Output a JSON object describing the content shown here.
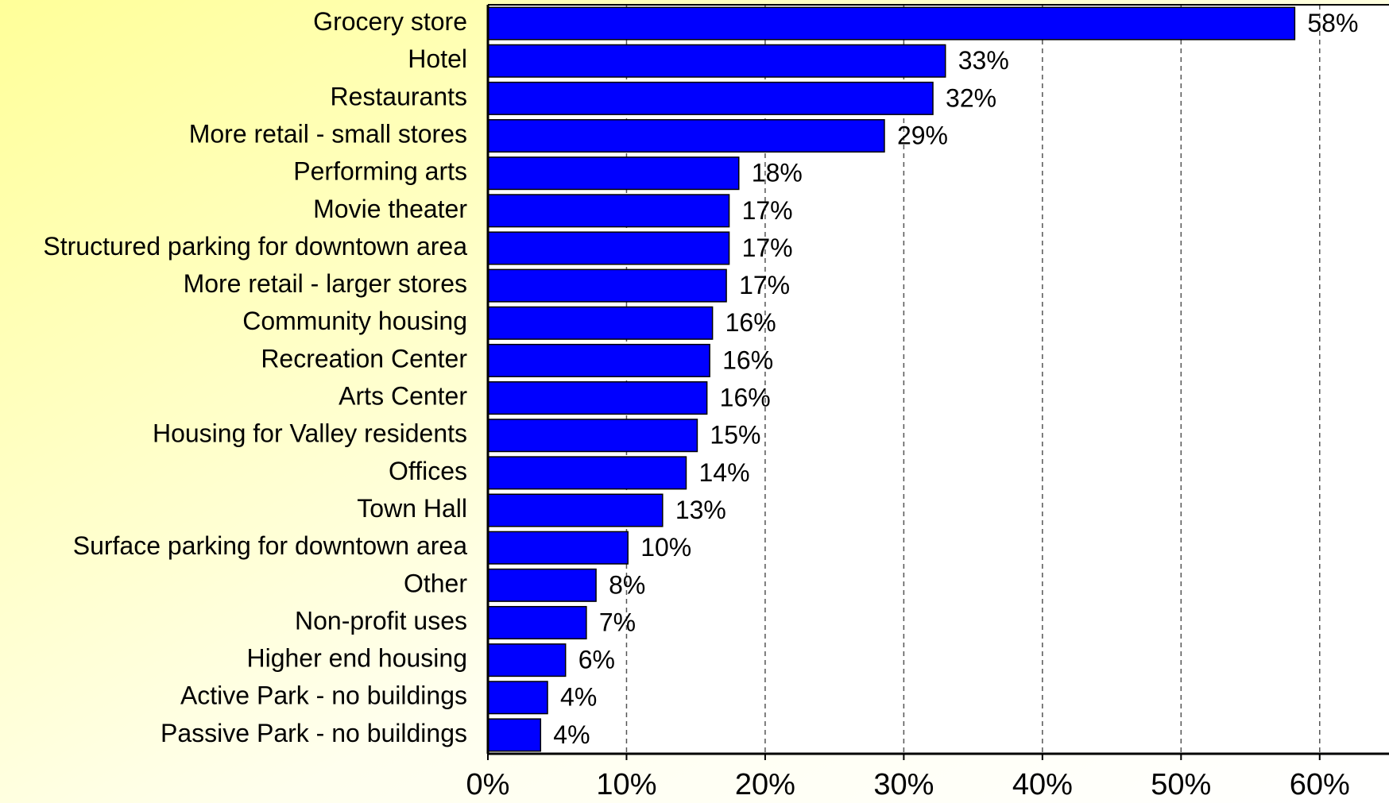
{
  "chart_data": {
    "type": "barh",
    "categories": [
      "Grocery store",
      "Hotel",
      "Restaurants",
      "More retail - small stores",
      "Performing arts",
      "Movie theater",
      "Structured parking for downtown area",
      "More retail - larger stores",
      "Community housing",
      "Recreation Center",
      "Arts Center",
      "Housing for Valley residents",
      "Offices",
      "Town Hall",
      "Surface parking for downtown area",
      "Other",
      "Non-profit uses",
      "Higher end housing",
      "Active Park - no buildings",
      "Passive Park - no buildings"
    ],
    "values": [
      58.2,
      33.0,
      32.1,
      28.6,
      18.1,
      17.4,
      17.4,
      17.2,
      16.2,
      16.0,
      15.8,
      15.1,
      14.3,
      12.6,
      10.1,
      7.8,
      7.1,
      5.6,
      4.3,
      3.8
    ],
    "value_labels": [
      "58%",
      "33%",
      "32%",
      "29%",
      "18%",
      "17%",
      "17%",
      "17%",
      "16%",
      "16%",
      "16%",
      "15%",
      "14%",
      "13%",
      "10%",
      "8%",
      "7%",
      "6%",
      "4%",
      "4%"
    ],
    "color": "#0000ff",
    "xlim": [
      0,
      65
    ],
    "xticks": [
      {
        "value": 0,
        "label": "0%"
      },
      {
        "value": 10,
        "label": "10%"
      },
      {
        "value": 20,
        "label": "20%"
      },
      {
        "value": 30,
        "label": "30%"
      },
      {
        "value": 40,
        "label": "40%"
      },
      {
        "value": 50,
        "label": "50%"
      },
      {
        "value": 60,
        "label": "60%"
      }
    ],
    "grid": true
  }
}
